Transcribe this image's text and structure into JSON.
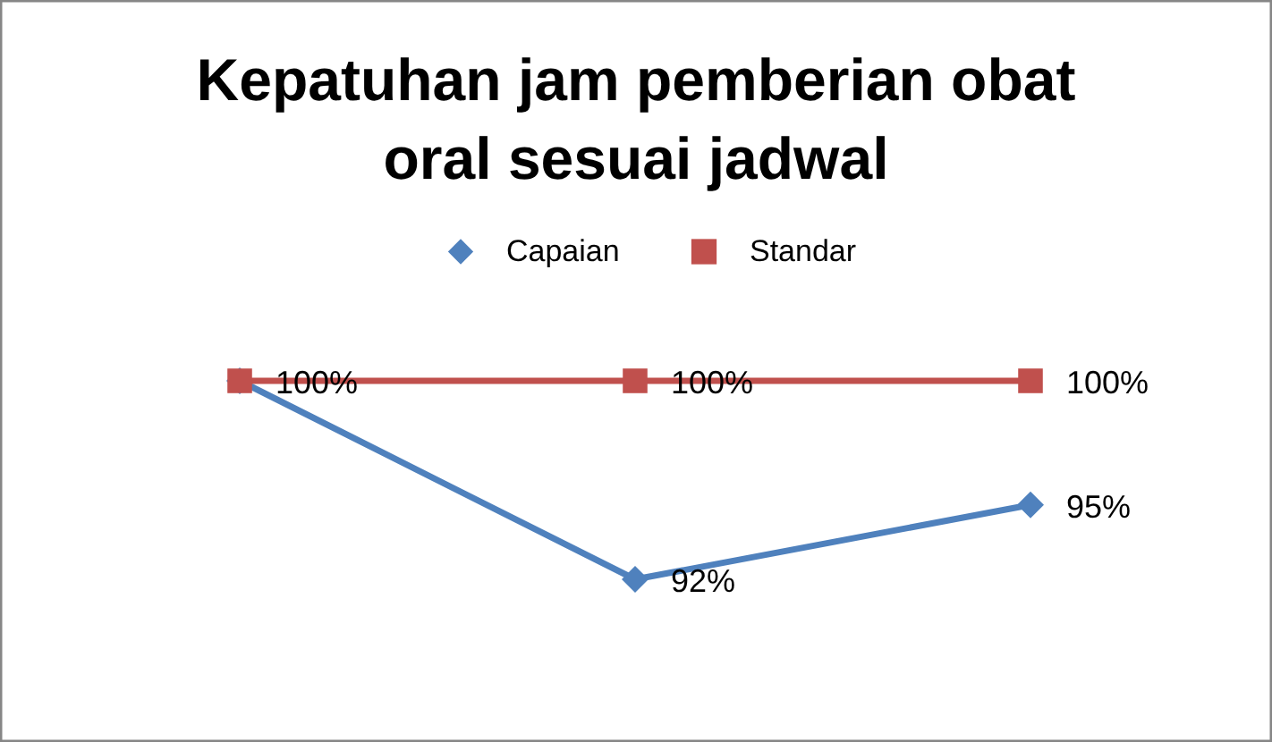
{
  "chart_data": {
    "type": "line",
    "title": "Kepatuhan jam pemberian obat\noral sesuai jadwal",
    "categories": [
      null,
      null,
      null
    ],
    "legend": "top",
    "tick_labels": false,
    "series": [
      {
        "name": "Capaian",
        "color": "#4f81bd",
        "marker": "diamond",
        "values": [
          100,
          92,
          95
        ],
        "value_labels": [
          null,
          "92%",
          "95%"
        ]
      },
      {
        "name": "Standar",
        "color": "#c0504d",
        "marker": "square",
        "values": [
          100,
          100,
          100
        ],
        "value_labels": [
          "100%",
          "100%",
          "100%"
        ]
      }
    ]
  }
}
